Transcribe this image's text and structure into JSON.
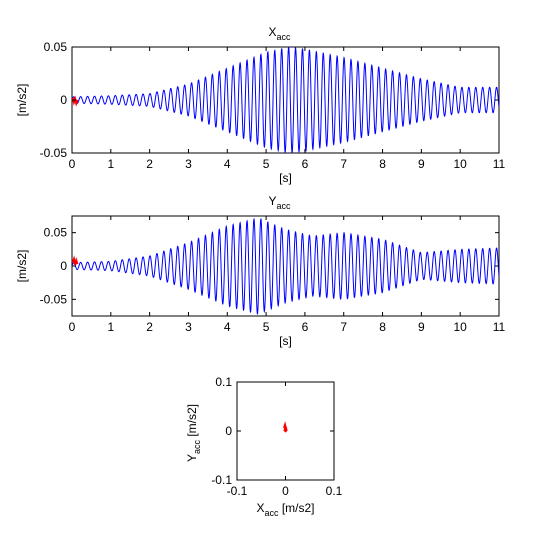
{
  "chart_data": [
    {
      "type": "line",
      "title": "X",
      "title_subscript": "acc",
      "xlabel": "[s]",
      "ylabel": "[m/s2]",
      "xlim": [
        0,
        11
      ],
      "ylim": [
        -0.05,
        0.05
      ],
      "xticks": [
        0,
        1,
        2,
        3,
        4,
        5,
        6,
        7,
        8,
        9,
        10,
        11
      ],
      "yticks": [
        -0.05,
        0,
        0.05
      ],
      "ytick_labels": [
        "-0.05",
        "0",
        "0.05"
      ],
      "grid": false,
      "series": [
        {
          "color": "#0000ff",
          "oscillation_frequency_hz": 5.6,
          "envelope": {
            "t": [
              0,
              1,
              2,
              3,
              4,
              5,
              5.6,
              6,
              7,
              8,
              9,
              10,
              11
            ],
            "amplitude": [
              0.003,
              0.004,
              0.006,
              0.015,
              0.03,
              0.045,
              0.05,
              0.048,
              0.04,
              0.03,
              0.02,
              0.012,
              0.012
            ]
          }
        },
        {
          "color": "#ff0000",
          "x": [
            0.02,
            0.05,
            0.08,
            0.11,
            0.14
          ],
          "y": [
            0.002,
            -0.002,
            0.001,
            -0.003,
            0.0
          ]
        }
      ]
    },
    {
      "type": "line",
      "title": "Y",
      "title_subscript": "acc",
      "xlabel": "[s]",
      "ylabel": "[m/s2]",
      "xlim": [
        0,
        11
      ],
      "ylim": [
        -0.075,
        0.075
      ],
      "xticks": [
        0,
        1,
        2,
        3,
        4,
        5,
        6,
        7,
        8,
        9,
        10,
        11
      ],
      "yticks": [
        -0.05,
        0,
        0.05
      ],
      "ytick_labels": [
        "-0.05",
        "0",
        "0.05"
      ],
      "grid": false,
      "series": [
        {
          "color": "#0000ff",
          "oscillation_frequency_hz": 5.6,
          "envelope": {
            "t": [
              0,
              1,
              2,
              3,
              4,
              4.8,
              5.5,
              6.2,
              7,
              8,
              9,
              10,
              11
            ],
            "amplitude": [
              0.005,
              0.007,
              0.015,
              0.035,
              0.06,
              0.072,
              0.055,
              0.045,
              0.05,
              0.04,
              0.02,
              0.025,
              0.027
            ]
          }
        },
        {
          "color": "#ff0000",
          "x": [
            0.02,
            0.05,
            0.08,
            0.11,
            0.14
          ],
          "y": [
            0.005,
            0.01,
            0.002,
            0.008,
            0.003
          ]
        }
      ]
    },
    {
      "type": "scatter",
      "title": "",
      "xlabel": "X",
      "xlabel_subscript": "acc",
      "xlabel_unit": "[m/s2]",
      "ylabel": "Y",
      "ylabel_subscript": "acc",
      "ylabel_unit": "[m/s2]",
      "xlim": [
        -0.1,
        0.1
      ],
      "ylim": [
        -0.1,
        0.1
      ],
      "xticks": [
        -0.1,
        0,
        0.1
      ],
      "xtick_labels": [
        "-0.1",
        "0",
        "0.1"
      ],
      "yticks": [
        -0.1,
        0,
        0.1
      ],
      "ytick_labels": [
        "-0.1",
        "0",
        "0.1"
      ],
      "grid": false,
      "series": [
        {
          "color": "#ff0000",
          "x": [
            -0.003,
            -0.001,
            0.001,
            -0.002,
            0.0,
            0.002,
            -0.001
          ],
          "y": [
            0.006,
            0.012,
            0.004,
            0.0,
            0.009,
            0.002,
            -0.002
          ]
        }
      ]
    }
  ]
}
